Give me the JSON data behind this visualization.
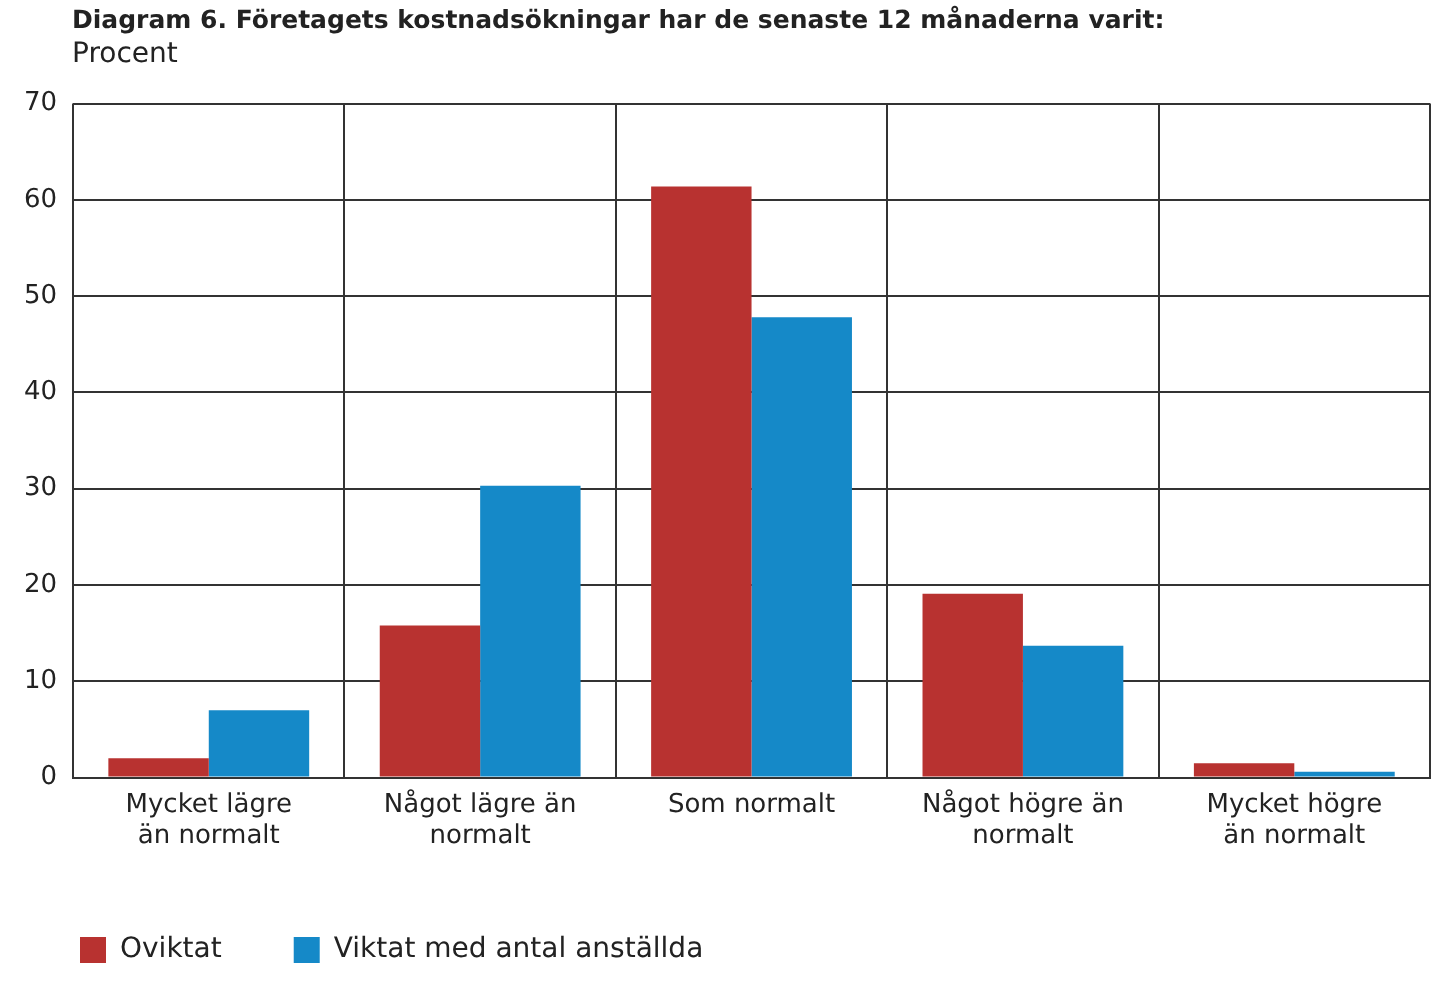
{
  "chart_data": {
    "type": "bar",
    "title": "Diagram 6. Företagets kostnadsökningar har de senaste 12 månaderna varit:",
    "ylabel": "Procent",
    "categories": [
      "Mycket lägre än normalt",
      "Något lägre än normalt",
      "Som normalt",
      "Något högre än normalt",
      "Mycket högre än normalt"
    ],
    "series": [
      {
        "name": "Oviktat",
        "color": "#b83230",
        "values": [
          2.0,
          15.8,
          61.4,
          19.1,
          1.5
        ]
      },
      {
        "name": "Viktat med antal anställda",
        "color": "#1589c8",
        "values": [
          7.0,
          30.3,
          47.8,
          13.7,
          0.6
        ]
      }
    ],
    "ylim": [
      0,
      70
    ],
    "yticks": [
      0,
      10,
      20,
      30,
      40,
      50,
      60,
      70
    ],
    "grid": true,
    "legend": "bottom left"
  }
}
